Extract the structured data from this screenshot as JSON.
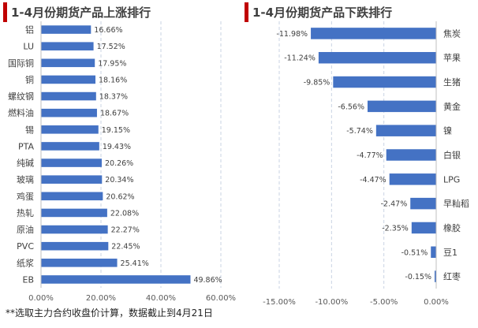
{
  "chart_data": [
    {
      "type": "bar",
      "orientation": "horizontal",
      "title": "1-4月份期货产品上涨排行",
      "categories": [
        "铝",
        "LU",
        "国际铜",
        "铜",
        "螺纹钢",
        "燃料油",
        "锡",
        "PTA",
        "纯碱",
        "玻璃",
        "鸡蛋",
        "热轧",
        "原油",
        "PVC",
        "纸浆",
        "EB"
      ],
      "values": [
        16.66,
        17.52,
        17.95,
        18.16,
        18.37,
        18.67,
        19.15,
        19.43,
        20.26,
        20.34,
        20.62,
        22.08,
        22.27,
        22.45,
        25.41,
        49.86
      ],
      "value_labels": [
        "16.66%",
        "17.52%",
        "17.95%",
        "18.16%",
        "18.37%",
        "18.67%",
        "19.15%",
        "19.43%",
        "20.26%",
        "20.34%",
        "20.62%",
        "22.08%",
        "22.27%",
        "22.45%",
        "25.41%",
        "49.86%"
      ],
      "xlim": [
        0,
        60
      ],
      "xticks": [
        0,
        20,
        40,
        60
      ],
      "xtick_labels": [
        "0.00%",
        "20.00%",
        "40.00%",
        "60.00%"
      ],
      "grid": "vertical dashed",
      "bar_color": "#4472c4"
    },
    {
      "type": "bar",
      "orientation": "horizontal",
      "title": "1-4月份期货产品下跌排行",
      "categories": [
        "焦炭",
        "苹果",
        "生猪",
        "黄金",
        "镍",
        "白银",
        "LPG",
        "早籼稻",
        "橡胶",
        "豆1",
        "红枣"
      ],
      "values": [
        -11.98,
        -11.24,
        -9.85,
        -6.56,
        -5.74,
        -4.77,
        -4.47,
        -2.47,
        -2.35,
        -0.51,
        -0.15
      ],
      "value_labels": [
        "-11.98%",
        "-11.24%",
        "-9.85%",
        "-6.56%",
        "-5.74%",
        "-4.77%",
        "-4.47%",
        "-2.47%",
        "-2.35%",
        "-0.51%",
        "-0.15%"
      ],
      "xlim": [
        -15,
        0
      ],
      "xticks": [
        -15,
        -10,
        -5,
        0
      ],
      "xtick_labels": [
        "-15.00%",
        "-10.00%",
        "-5.00%",
        "0.00%"
      ],
      "grid": "vertical dashed",
      "bar_color": "#4472c4"
    }
  ],
  "footnote": "**选取主力合约收盘价计算，数据截止到4月21日"
}
